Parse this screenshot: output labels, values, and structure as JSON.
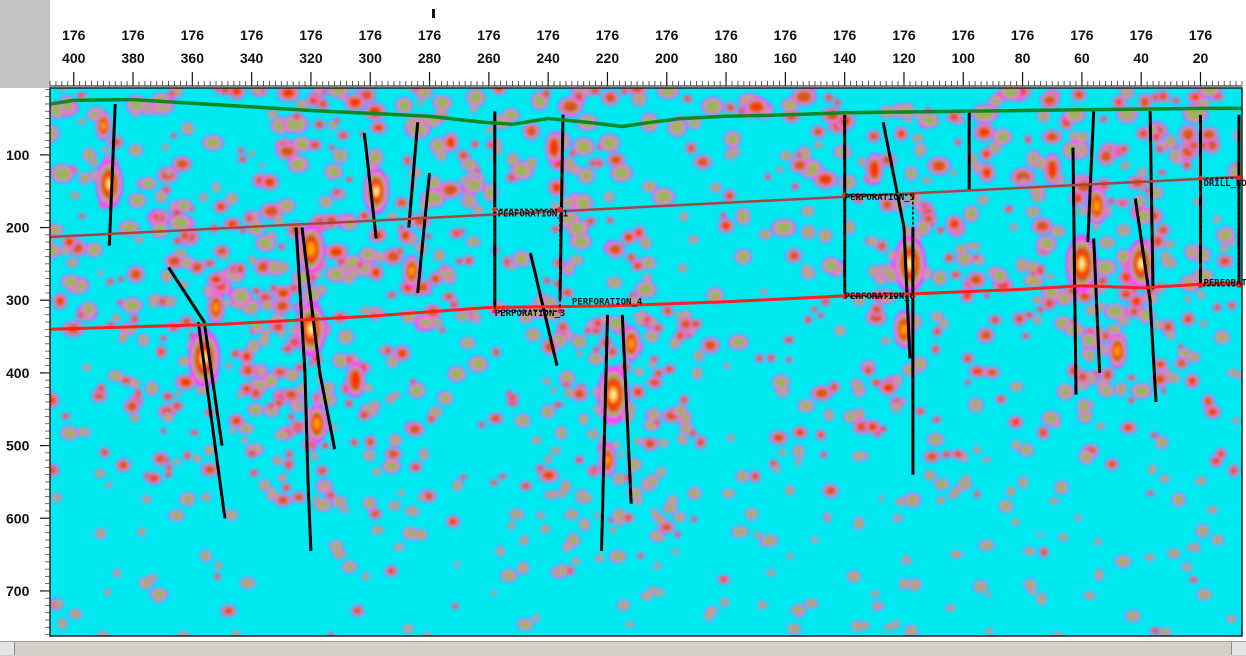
{
  "chart_data": {
    "type": "heatmap",
    "title": "",
    "xlabel": "",
    "ylabel": "",
    "x_axis": {
      "position": "top",
      "reversed": true,
      "ticks": [
        {
          "value": 400,
          "prefix": "176",
          "label": "400"
        },
        {
          "value": 380,
          "prefix": "176",
          "label": "380"
        },
        {
          "value": 360,
          "prefix": "176",
          "label": "360"
        },
        {
          "value": 340,
          "prefix": "176",
          "label": "340"
        },
        {
          "value": 320,
          "prefix": "176",
          "label": "320"
        },
        {
          "value": 300,
          "prefix": "176",
          "label": "300"
        },
        {
          "value": 280,
          "prefix": "176",
          "label": "280"
        },
        {
          "value": 260,
          "prefix": "176",
          "label": "260"
        },
        {
          "value": 240,
          "prefix": "176",
          "label": "240"
        },
        {
          "value": 220,
          "prefix": "176",
          "label": "220"
        },
        {
          "value": 200,
          "prefix": "176",
          "label": "200"
        },
        {
          "value": 180,
          "prefix": "176",
          "label": "180"
        },
        {
          "value": 160,
          "prefix": "176",
          "label": "160"
        },
        {
          "value": 140,
          "prefix": "176",
          "label": "140"
        },
        {
          "value": 120,
          "prefix": "176",
          "label": "120"
        },
        {
          "value": 100,
          "prefix": "176",
          "label": "100"
        },
        {
          "value": 80,
          "prefix": "176",
          "label": "80"
        },
        {
          "value": 60,
          "prefix": "176",
          "label": "60"
        },
        {
          "value": 40,
          "prefix": "176",
          "label": "40"
        },
        {
          "value": 20,
          "prefix": "176",
          "label": "20"
        }
      ],
      "range": [
        408,
        6
      ]
    },
    "y_axis": {
      "position": "left",
      "reversed": true,
      "ticks": [
        100,
        200,
        300,
        400,
        500,
        600,
        700
      ],
      "range": [
        8,
        762
      ]
    },
    "colors": {
      "background": "#00e8f0",
      "halo": "#ff40ff",
      "level1": "#a0b060",
      "level2": "#e05020",
      "level3": "#ff3000",
      "level4": "#ffa000",
      "peak": "#fff0a0",
      "surface_line": "#118822",
      "upper_horizon": "#aa4444",
      "lower_horizon": "#ff2020",
      "fault_lines": "#000000"
    },
    "surface_line": {
      "x": [
        408,
        400,
        380,
        360,
        340,
        320,
        300,
        280,
        262,
        252,
        240,
        225,
        215,
        205,
        195,
        180,
        160,
        140,
        120,
        100,
        80,
        60,
        40,
        20,
        6
      ],
      "y": [
        30,
        25,
        24,
        29,
        34,
        39,
        43,
        47,
        55,
        58,
        50,
        56,
        61,
        55,
        50,
        47,
        45,
        42,
        41,
        40,
        39,
        38,
        37,
        36,
        36
      ]
    },
    "upper_horizon": {
      "x": [
        408,
        6
      ],
      "y": [
        213,
        130
      ]
    },
    "lower_horizon": {
      "x": [
        408,
        350,
        300,
        260,
        220,
        180,
        140,
        110,
        80,
        60,
        40,
        20,
        6
      ],
      "y": [
        340,
        333,
        322,
        310,
        308,
        302,
        294,
        290,
        285,
        280,
        283,
        278,
        276
      ]
    },
    "fault_lines": [
      {
        "x": [
          386,
          388
        ],
        "y": [
          30,
          225
        ]
      },
      {
        "x": [
          368,
          356,
          350
        ],
        "y": [
          255,
          330,
          500
        ]
      },
      {
        "x": [
          358,
          354,
          349
        ],
        "y": [
          330,
          450,
          600
        ]
      },
      {
        "x": [
          323,
          317,
          312
        ],
        "y": [
          200,
          400,
          505
        ]
      },
      {
        "x": [
          325,
          322,
          321,
          320
        ],
        "y": [
          200,
          400,
          550,
          645
        ]
      },
      {
        "x": [
          302,
          298
        ],
        "y": [
          70,
          215
        ]
      },
      {
        "x": [
          284,
          287
        ],
        "y": [
          55,
          200
        ]
      },
      {
        "x": [
          280,
          284
        ],
        "y": [
          125,
          290
        ]
      },
      {
        "x": [
          258,
          258
        ],
        "y": [
          40,
          310
        ]
      },
      {
        "x": [
          246,
          237
        ],
        "y": [
          235,
          390
        ]
      },
      {
        "x": [
          235,
          236
        ],
        "y": [
          45,
          300
        ]
      },
      {
        "x": [
          220,
          222
        ],
        "y": [
          320,
          645
        ]
      },
      {
        "x": [
          215,
          212
        ],
        "y": [
          320,
          580
        ]
      },
      {
        "x": [
          140,
          140
        ],
        "y": [
          45,
          290
        ]
      },
      {
        "x": [
          127,
          120,
          118
        ],
        "y": [
          55,
          200,
          380
        ]
      },
      {
        "x": [
          117,
          117
        ],
        "y": [
          200,
          540
        ]
      },
      {
        "x": [
          98,
          98
        ],
        "y": [
          40,
          150
        ]
      },
      {
        "x": [
          63,
          62
        ],
        "y": [
          90,
          430
        ]
      },
      {
        "x": [
          56,
          58
        ],
        "y": [
          40,
          220
        ]
      },
      {
        "x": [
          56,
          54
        ],
        "y": [
          215,
          400
        ]
      },
      {
        "x": [
          42,
          37,
          35
        ],
        "y": [
          160,
          300,
          440
        ]
      },
      {
        "x": [
          37,
          36
        ],
        "y": [
          40,
          285
        ]
      },
      {
        "x": [
          20,
          20
        ],
        "y": [
          45,
          280
        ]
      },
      {
        "x": [
          7,
          7
        ],
        "y": [
          45,
          280
        ]
      }
    ],
    "hotspots": [
      {
        "x": 388,
        "y": 140,
        "r": 34,
        "intensity": 5
      },
      {
        "x": 390,
        "y": 60,
        "r": 20,
        "intensity": 4
      },
      {
        "x": 356,
        "y": 380,
        "r": 40,
        "intensity": 5
      },
      {
        "x": 352,
        "y": 310,
        "r": 22,
        "intensity": 4
      },
      {
        "x": 320,
        "y": 230,
        "r": 34,
        "intensity": 4
      },
      {
        "x": 320,
        "y": 340,
        "r": 38,
        "intensity": 5
      },
      {
        "x": 318,
        "y": 470,
        "r": 26,
        "intensity": 4
      },
      {
        "x": 298,
        "y": 150,
        "r": 32,
        "intensity": 5
      },
      {
        "x": 286,
        "y": 260,
        "r": 22,
        "intensity": 4
      },
      {
        "x": 305,
        "y": 410,
        "r": 24,
        "intensity": 3
      },
      {
        "x": 238,
        "y": 90,
        "r": 22,
        "intensity": 3
      },
      {
        "x": 218,
        "y": 430,
        "r": 40,
        "intensity": 5
      },
      {
        "x": 212,
        "y": 360,
        "r": 24,
        "intensity": 4
      },
      {
        "x": 220,
        "y": 520,
        "r": 22,
        "intensity": 4
      },
      {
        "x": 118,
        "y": 250,
        "r": 40,
        "intensity": 5
      },
      {
        "x": 120,
        "y": 340,
        "r": 26,
        "intensity": 4
      },
      {
        "x": 130,
        "y": 120,
        "r": 22,
        "intensity": 3
      },
      {
        "x": 60,
        "y": 250,
        "r": 40,
        "intensity": 5
      },
      {
        "x": 40,
        "y": 250,
        "r": 34,
        "intensity": 5
      },
      {
        "x": 55,
        "y": 170,
        "r": 26,
        "intensity": 4
      },
      {
        "x": 48,
        "y": 370,
        "r": 24,
        "intensity": 4
      },
      {
        "x": 70,
        "y": 120,
        "r": 22,
        "intensity": 3
      }
    ],
    "annotations": [
      {
        "text": "PERFORATION_1",
        "x": 257,
        "y": 185
      },
      {
        "text": "PERFORATION_3",
        "x": 258,
        "y": 322
      },
      {
        "text": "PERFORATION_4",
        "x": 232,
        "y": 306
      },
      {
        "text": "PERFORATION_5",
        "x": 140,
        "y": 162
      },
      {
        "text": "PERFORATION_6",
        "x": 140,
        "y": 298
      },
      {
        "text": "DRILL_HOLE",
        "x": 19,
        "y": 143
      },
      {
        "text": "PERFORATION",
        "x": 19,
        "y": 280
      }
    ],
    "boxes": [
      {
        "x0": 258,
        "x1": 236,
        "y0": 175,
        "y1": 315
      },
      {
        "x0": 140,
        "x1": 117,
        "y0": 155,
        "y1": 295
      },
      {
        "x0": 20,
        "x1": 7,
        "y0": 132,
        "y1": 280
      }
    ],
    "grid": false,
    "legend": "none"
  }
}
